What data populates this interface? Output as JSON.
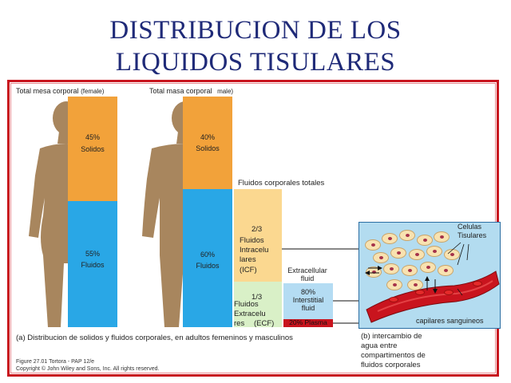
{
  "title": {
    "line1": "DISTRIBUCION DE LOS",
    "line2": "LIQUIDOS TISULARES"
  },
  "female": {
    "header_main": "Total mesa corporal",
    "header_sub": "(female)",
    "solids": {
      "percent": "45%",
      "label": "Solidos",
      "value": 45
    },
    "fluids": {
      "percent": "55%",
      "label": "Fluidos",
      "value": 55
    }
  },
  "male": {
    "header_main": "Total masa corporal",
    "header_sub": "male)",
    "solids": {
      "percent": "40%",
      "label": "Solidos",
      "value": 40
    },
    "fluids": {
      "percent": "60%",
      "label": "Fluidos",
      "value": 60
    }
  },
  "body_fluids": {
    "header": "Fluidos corporales totales",
    "icf": {
      "fraction": "2/3",
      "line1": "Fluidos",
      "line2": "Intracelu",
      "line3": "lares",
      "line4": "(ICF)"
    },
    "ecf": {
      "fraction": "1/3",
      "line1": "Fluidos",
      "line2": "Extracelu",
      "line3": "res",
      "line4": "(ECF)"
    }
  },
  "extracellular": {
    "header_line1": "Extracellular",
    "header_line2": "fluid",
    "interstitial": {
      "percent": "80%",
      "line1": "Interstitial",
      "line2": "fluid",
      "value": 80
    },
    "plasma": {
      "label": "20% Plasma",
      "value": 20
    }
  },
  "inset": {
    "cells_label_line1": "Celulas",
    "cells_label_line2": "Tisulares",
    "capillary_label": "capilares sanguineos"
  },
  "captions": {
    "a": "(a) Distribucion de solidos y fluidos corporales, en adultos femeninos y masculinos",
    "b_line1": "(b)  intercambio de",
    "b_line2": "agua entre",
    "b_line3": "compartimentos de",
    "b_line4": "fluidos corporales"
  },
  "credits": {
    "line1": "Figure 27.01  Tortora - PAP 12/e",
    "line2": "Copyright © John Wiley and Sons, Inc. All rights reserved."
  },
  "colors": {
    "solids": "#f2a23a",
    "fluids": "#29a7e6",
    "icf": "#fbd890",
    "ecf": "#d9f0c7",
    "interstitial": "#b4dcf3",
    "plasma": "#c8141e",
    "title": "#1f2a78",
    "frame": "#c8141e"
  },
  "icons": {
    "silhouette": "human-silhouette-icon",
    "capillary": "blood-vessel-icon",
    "cell": "tissue-cell-icon"
  }
}
